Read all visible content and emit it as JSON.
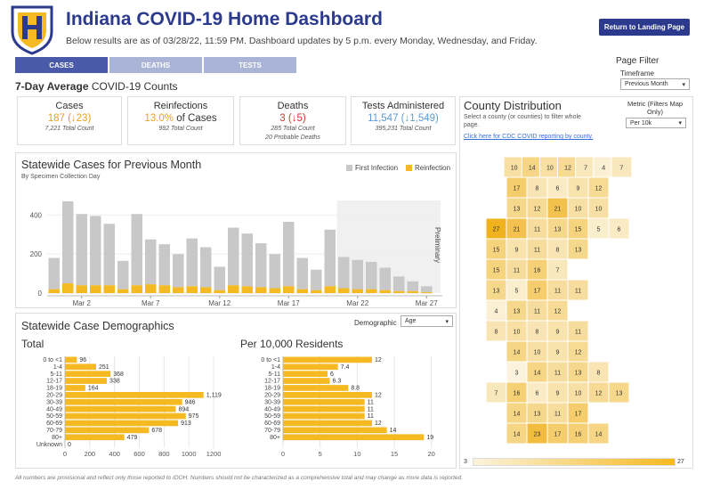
{
  "header": {
    "title": "Indiana COVID-19 Home Dashboard",
    "subtitle": "Below results are as of 03/28/22, 11:59 PM. Dashboard updates by 5 p.m. every Monday, Wednesday, and Friday.",
    "landing_button": "Return to Landing Page"
  },
  "tabs": [
    {
      "label": "CASES",
      "active": true
    },
    {
      "label": "DEATHS",
      "active": false
    },
    {
      "label": "TESTS",
      "active": false
    }
  ],
  "page_filter": {
    "title": "Page Filter",
    "timeframe_label": "Timeframe",
    "timeframe_value": "Previous Month"
  },
  "avg": {
    "title_bold": "7-Day Average",
    "title_rest": " COVID-19 Counts"
  },
  "kpis": [
    {
      "title": "Cases",
      "value": "187 (↓23)",
      "color": "#e8a21a",
      "sub1": "7,221 Total Count",
      "sub2": ""
    },
    {
      "title": "Reinfections",
      "value_num": "13.0%",
      "value_rest": " of Cases",
      "color": "#e8a21a",
      "sub1": "992 Total Count",
      "sub2": ""
    },
    {
      "title": "Deaths",
      "value": "3 (↓5)",
      "color": "#d9352b",
      "sub1": "285 Total Count",
      "sub2": "20 Probable Deaths"
    },
    {
      "title": "Tests Administered",
      "value": "11,547 (↓1,549)",
      "color": "#5b9bd5",
      "sub1": "395,231 Total Count",
      "sub2": ""
    }
  ],
  "colors": {
    "brand": "#2b3a8c",
    "first_infection": "#c8c8c8",
    "reinfection": "#f5b921",
    "bar": "#f5b921"
  },
  "statewide": {
    "title": "Statewide Cases for Previous Month",
    "subtitle": "By Specimen Collection Day",
    "legend_first": "First Infection",
    "legend_re": "Reinfection",
    "preliminary": "Preliminary"
  },
  "demographics": {
    "title": "Statewide Case Demographics",
    "dropdown_label": "Demographic",
    "dropdown_value": "Age",
    "total_title": "Total",
    "per_title": "Per 10,000 Residents"
  },
  "map": {
    "title": "County Distribution",
    "desc": "Select a county (or counties) to filter whole page.",
    "link": "Click here for CDC COVID reporting by county.",
    "metric_label": "Metric (Filters Map Only)",
    "metric_value": "Per 10k",
    "legend_min": "3",
    "legend_max": "27"
  },
  "footer": "All numbers are provisional and reflect only those reported to IDOH. Numbers should not be characterized as a comprehensive total and may change as more data is reported.",
  "chart_data": [
    {
      "type": "bar",
      "title": "Statewide Cases for Previous Month",
      "subtitle": "By Specimen Collection Day",
      "categories": [
        "Feb 28",
        "Mar 1",
        "Mar 2",
        "Mar 3",
        "Mar 4",
        "Mar 5",
        "Mar 6",
        "Mar 7",
        "Mar 8",
        "Mar 9",
        "Mar 10",
        "Mar 11",
        "Mar 12",
        "Mar 13",
        "Mar 14",
        "Mar 15",
        "Mar 16",
        "Mar 17",
        "Mar 18",
        "Mar 19",
        "Mar 20",
        "Mar 21",
        "Mar 22",
        "Mar 23",
        "Mar 24",
        "Mar 25",
        "Mar 26",
        "Mar 27"
      ],
      "x_ticks": [
        "Mar 2",
        "Mar 7",
        "Mar 12",
        "Mar 17",
        "Mar 22",
        "Mar 27"
      ],
      "series": [
        {
          "name": "First Infection",
          "values": [
            160,
            420,
            365,
            355,
            315,
            145,
            365,
            230,
            210,
            170,
            245,
            205,
            120,
            295,
            270,
            225,
            175,
            330,
            160,
            105,
            290,
            160,
            150,
            140,
            115,
            75,
            50,
            30
          ]
        },
        {
          "name": "Reinfection",
          "values": [
            20,
            50,
            40,
            40,
            40,
            20,
            40,
            45,
            40,
            30,
            35,
            30,
            15,
            40,
            35,
            30,
            25,
            35,
            20,
            15,
            35,
            25,
            20,
            20,
            15,
            10,
            10,
            5
          ]
        }
      ],
      "yticks": [
        0,
        200,
        400
      ],
      "ylim": [
        0,
        520
      ],
      "stacked": true,
      "preliminary_from": "Mar 21"
    },
    {
      "type": "bar",
      "orientation": "horizontal",
      "title": "Total",
      "categories": [
        "0 to <1",
        "1-4",
        "5-11",
        "12-17",
        "18-19",
        "20-29",
        "30-39",
        "40-49",
        "50-59",
        "60-69",
        "70-79",
        "80+",
        "Unknown"
      ],
      "values": [
        96,
        251,
        368,
        338,
        164,
        1119,
        946,
        894,
        975,
        913,
        678,
        479,
        0
      ],
      "xticks": [
        0,
        200,
        400,
        600,
        800,
        1000,
        1200
      ],
      "xlim": [
        0,
        1250
      ]
    },
    {
      "type": "bar",
      "orientation": "horizontal",
      "title": "Per 10,000 Residents",
      "categories": [
        "0 to <1",
        "1-4",
        "5-11",
        "12-17",
        "18-19",
        "20-29",
        "30-39",
        "40-49",
        "50-59",
        "60-69",
        "70-79",
        "80+"
      ],
      "values": [
        12,
        7.4,
        6,
        6.3,
        8.8,
        12,
        11,
        11,
        11,
        12,
        14,
        19
      ],
      "xticks": [
        0,
        5,
        10,
        15,
        20
      ],
      "xlim": [
        0,
        21
      ]
    }
  ],
  "counties": [
    {
      "label": "10"
    },
    {
      "label": "14"
    },
    {
      "label": "10"
    },
    {
      "label": "12"
    },
    {
      "label": "7"
    },
    {
      "label": "4"
    },
    {
      "label": "7"
    },
    {
      "label": "17"
    },
    {
      "label": "8"
    },
    {
      "label": "6"
    },
    {
      "label": "9"
    },
    {
      "label": "12"
    },
    {
      "label": "13"
    },
    {
      "label": "12"
    },
    {
      "label": "21"
    },
    {
      "label": "10"
    },
    {
      "label": "10"
    },
    {
      "label": "27"
    },
    {
      "label": "21"
    },
    {
      "label": "11"
    },
    {
      "label": "13"
    },
    {
      "label": "15"
    },
    {
      "label": "5"
    },
    {
      "label": "6"
    },
    {
      "label": "15"
    },
    {
      "label": "9"
    },
    {
      "label": "11"
    },
    {
      "label": "8"
    },
    {
      "label": "13"
    },
    {
      "label": "15"
    },
    {
      "label": "11"
    },
    {
      "label": "16"
    },
    {
      "label": "7"
    },
    {
      "label": "13"
    },
    {
      "label": "5"
    },
    {
      "label": "17"
    },
    {
      "label": "11"
    },
    {
      "label": "11"
    },
    {
      "label": "4"
    },
    {
      "label": "13"
    },
    {
      "label": "11"
    },
    {
      "label": "12"
    },
    {
      "label": "8"
    },
    {
      "label": "10"
    },
    {
      "label": "8"
    },
    {
      "label": "9"
    },
    {
      "label": "11"
    },
    {
      "label": "14"
    },
    {
      "label": "10"
    },
    {
      "label": "9"
    },
    {
      "label": "12"
    },
    {
      "label": "3"
    },
    {
      "label": "14"
    },
    {
      "label": "11"
    },
    {
      "label": "13"
    },
    {
      "label": "8"
    },
    {
      "label": "7"
    },
    {
      "label": "16"
    },
    {
      "label": "6"
    },
    {
      "label": "9"
    },
    {
      "label": "10"
    },
    {
      "label": "12"
    },
    {
      "label": "13"
    },
    {
      "label": "14"
    },
    {
      "label": "13"
    },
    {
      "label": "11"
    },
    {
      "label": "17"
    },
    {
      "label": "14"
    },
    {
      "label": "23"
    },
    {
      "label": "17"
    },
    {
      "label": "16"
    },
    {
      "label": "14"
    }
  ]
}
